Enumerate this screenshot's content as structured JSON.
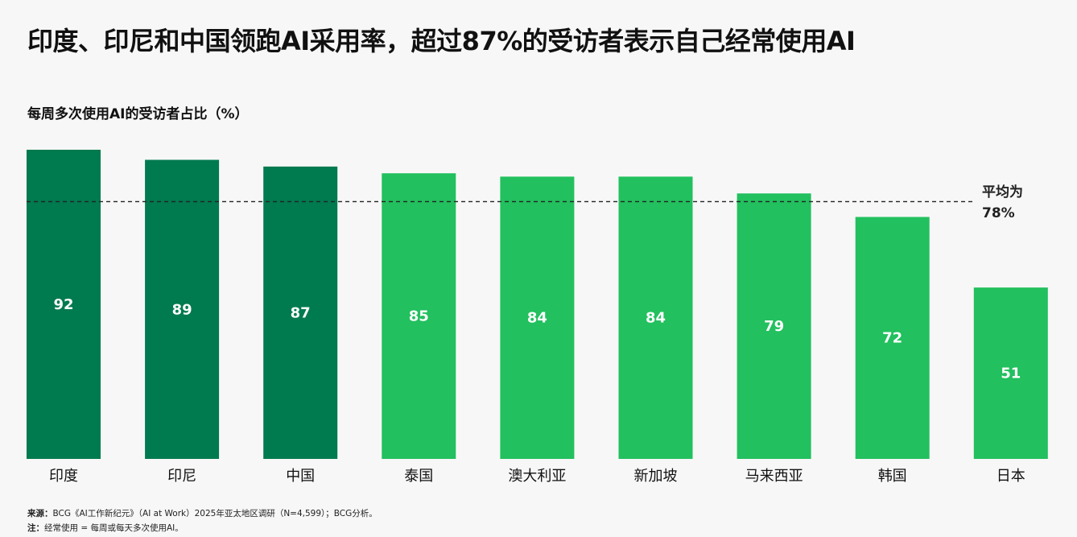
{
  "title": "印度、印尼和中国领跑AI采用率，超过87%的受访者表示自己经常使用AI",
  "chart_data": {
    "type": "bar",
    "title": "每周多次使用AI的受访者占比（%）",
    "categories": [
      "印度",
      "印尼",
      "中国",
      "泰国",
      "澳大利亚",
      "新加坡",
      "马来西亚",
      "韩国",
      "日本"
    ],
    "values": [
      92,
      89,
      87,
      85,
      84,
      84,
      79,
      72,
      51
    ],
    "highlighted": [
      true,
      true,
      true,
      false,
      false,
      false,
      false,
      false,
      false
    ],
    "ylim": [
      0,
      92
    ],
    "grid": false,
    "average": {
      "value": 78,
      "label_line1": "平均为",
      "label_line2": "78%"
    },
    "colors": {
      "highlight": "#007a4f",
      "normal": "#22c05e",
      "value_text": "#ffffff"
    }
  },
  "footnotes": {
    "source_label": "来源：",
    "source_text": "BCG《AI工作新纪元》（AI at Work）2025年亚太地区调研（N=4,599）；BCG分析。",
    "note_label": "注：",
    "note_text": "经常使用 = 每周或每天多次使用AI。"
  }
}
